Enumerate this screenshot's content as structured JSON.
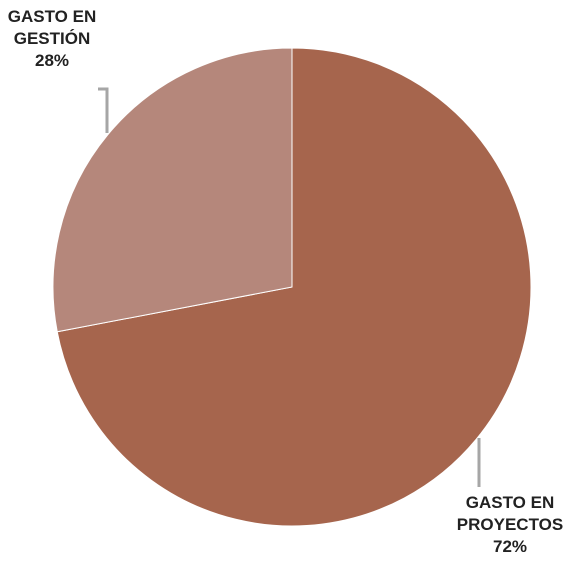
{
  "chart_data": {
    "type": "pie",
    "start_angle_deg": 0,
    "direction": "clockwise",
    "slices": [
      {
        "label": "GASTO EN PROYECTOS",
        "label_lines": [
          "GASTO EN",
          "PROYECTOS"
        ],
        "value": 72,
        "value_label": "72%",
        "color": "#a6654d"
      },
      {
        "label": "GASTO EN GESTIÓN",
        "label_lines": [
          "GASTO EN",
          "GESTIÓN"
        ],
        "value": 28,
        "value_label": "28%",
        "color": "#b5877b"
      }
    ],
    "leader_line_color": "#a6a6a6"
  }
}
